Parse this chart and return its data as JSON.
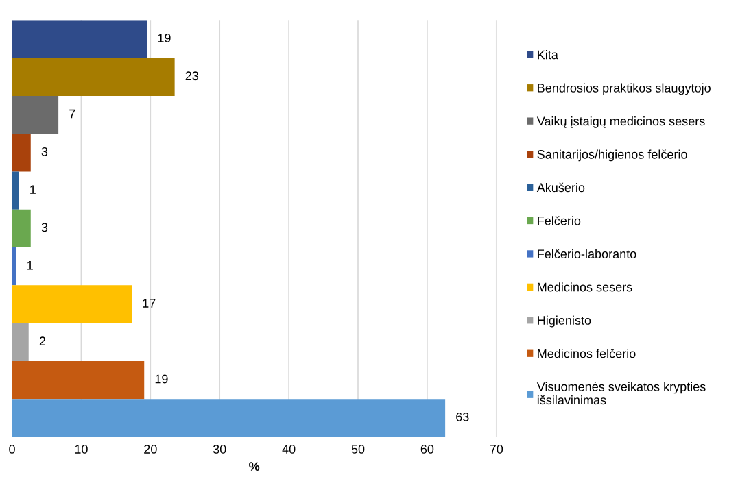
{
  "chart_data": {
    "type": "bar",
    "orientation": "horizontal",
    "xlabel": "%",
    "categories": [
      null,
      null,
      null,
      null,
      null,
      null,
      null,
      null,
      null,
      null,
      null
    ],
    "series": [
      {
        "name": "Kita",
        "color": "#2f4b8a",
        "values": [
          19.5,
          null,
          null,
          null,
          null,
          null,
          null,
          null,
          null,
          null,
          null
        ],
        "value_labels": [
          "19",
          null,
          null,
          null,
          null,
          null,
          null,
          null,
          null,
          null,
          null
        ]
      },
      {
        "name": "Bendrosios praktikos slaugytojo",
        "color": "#a67c00",
        "values": [
          null,
          23.5,
          null,
          null,
          null,
          null,
          null,
          null,
          null,
          null,
          null
        ],
        "value_labels": [
          null,
          "23",
          null,
          null,
          null,
          null,
          null,
          null,
          null,
          null,
          null
        ]
      },
      {
        "name": "Vaikų įstaigų medicinos sesers",
        "color": "#6b6b6b",
        "values": [
          null,
          null,
          6.7,
          null,
          null,
          null,
          null,
          null,
          null,
          null,
          null
        ],
        "value_labels": [
          null,
          null,
          "7",
          null,
          null,
          null,
          null,
          null,
          null,
          null,
          null
        ]
      },
      {
        "name": "Sanitarijos/higienos felčerio",
        "color": "#a9420c",
        "values": [
          null,
          null,
          null,
          2.7,
          null,
          null,
          null,
          null,
          null,
          null,
          null
        ],
        "value_labels": [
          null,
          null,
          null,
          "3",
          null,
          null,
          null,
          null,
          null,
          null,
          null
        ]
      },
      {
        "name": "Akušerio",
        "color": "#2a6099",
        "values": [
          null,
          null,
          null,
          null,
          1.0,
          null,
          null,
          null,
          null,
          null,
          null
        ],
        "value_labels": [
          null,
          null,
          null,
          null,
          "1",
          null,
          null,
          null,
          null,
          null,
          null
        ]
      },
      {
        "name": "Felčerio",
        "color": "#6aa84f",
        "values": [
          null,
          null,
          null,
          null,
          null,
          2.7,
          null,
          null,
          null,
          null,
          null
        ],
        "value_labels": [
          null,
          null,
          null,
          null,
          null,
          "3",
          null,
          null,
          null,
          null,
          null
        ]
      },
      {
        "name": "Felčerio-laboranto",
        "color": "#4472c4",
        "values": [
          null,
          null,
          null,
          null,
          null,
          null,
          0.6,
          null,
          null,
          null,
          null
        ],
        "value_labels": [
          null,
          null,
          null,
          null,
          null,
          null,
          "1",
          null,
          null,
          null,
          null
        ]
      },
      {
        "name": "Medicinos sesers",
        "color": "#ffc000",
        "values": [
          null,
          null,
          null,
          null,
          null,
          null,
          null,
          17.3,
          null,
          null,
          null
        ],
        "value_labels": [
          null,
          null,
          null,
          null,
          null,
          null,
          null,
          "17",
          null,
          null,
          null
        ]
      },
      {
        "name": "Higienisto",
        "color": "#a5a5a5",
        "values": [
          null,
          null,
          null,
          null,
          null,
          null,
          null,
          null,
          2.4,
          null,
          null
        ],
        "value_labels": [
          null,
          null,
          null,
          null,
          null,
          null,
          null,
          null,
          "2",
          null,
          null
        ]
      },
      {
        "name": "Medicinos felčerio",
        "color": "#c55a11",
        "values": [
          null,
          null,
          null,
          null,
          null,
          null,
          null,
          null,
          null,
          19.1,
          null
        ],
        "value_labels": [
          null,
          null,
          null,
          null,
          null,
          null,
          null,
          null,
          null,
          "19",
          null
        ]
      },
      {
        "name": "Visuomenės sveikatos krypties\nišsilavinimas",
        "color": "#5b9bd5",
        "values": [
          null,
          null,
          null,
          null,
          null,
          null,
          null,
          null,
          null,
          null,
          62.6
        ],
        "value_labels": [
          null,
          null,
          null,
          null,
          null,
          null,
          null,
          null,
          null,
          null,
          "63"
        ]
      }
    ],
    "xlim": [
      0,
      70
    ],
    "xticks": [
      0,
      10,
      20,
      30,
      40,
      50,
      60,
      70
    ],
    "grid": "x",
    "legend": "right"
  }
}
